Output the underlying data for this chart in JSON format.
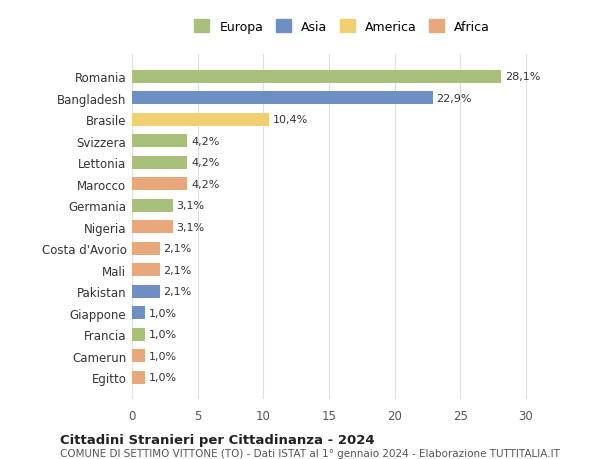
{
  "countries": [
    "Romania",
    "Bangladesh",
    "Brasile",
    "Svizzera",
    "Lettonia",
    "Marocco",
    "Germania",
    "Nigeria",
    "Costa d'Avorio",
    "Mali",
    "Pakistan",
    "Giappone",
    "Francia",
    "Camerun",
    "Egitto"
  ],
  "values": [
    28.1,
    22.9,
    10.4,
    4.2,
    4.2,
    4.2,
    3.1,
    3.1,
    2.1,
    2.1,
    2.1,
    1.0,
    1.0,
    1.0,
    1.0
  ],
  "labels": [
    "28,1%",
    "22,9%",
    "10,4%",
    "4,2%",
    "4,2%",
    "4,2%",
    "3,1%",
    "3,1%",
    "2,1%",
    "2,1%",
    "2,1%",
    "1,0%",
    "1,0%",
    "1,0%",
    "1,0%"
  ],
  "colors": [
    "#a8c07a",
    "#6e8fc4",
    "#f0d070",
    "#a8c07a",
    "#a8c07a",
    "#e8a87c",
    "#a8c07a",
    "#e8a87c",
    "#e8a87c",
    "#e8a87c",
    "#6e8fc4",
    "#6e8fc4",
    "#a8c07a",
    "#e8a87c",
    "#e8a87c"
  ],
  "legend": [
    {
      "label": "Europa",
      "color": "#a8c07a"
    },
    {
      "label": "Asia",
      "color": "#6e8fc4"
    },
    {
      "label": "America",
      "color": "#f0d070"
    },
    {
      "label": "Africa",
      "color": "#e8a87c"
    }
  ],
  "xlim": [
    0,
    32
  ],
  "xticks": [
    0,
    5,
    10,
    15,
    20,
    25,
    30
  ],
  "title": "Cittadini Stranieri per Cittadinanza - 2024",
  "subtitle": "COMUNE DI SETTIMO VITTONE (TO) - Dati ISTAT al 1° gennaio 2024 - Elaborazione TUTTITALIA.IT",
  "bg_color": "#ffffff",
  "grid_color": "#e0e0e0"
}
